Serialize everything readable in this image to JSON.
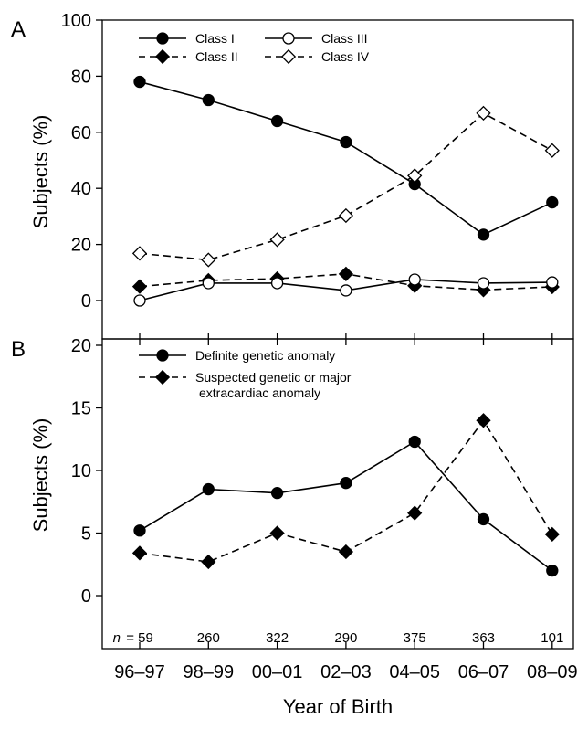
{
  "chart_data": [
    {
      "panel": "A",
      "type": "line",
      "ylabel": "Subjects (%)",
      "ylim": [
        -10,
        100
      ],
      "yticks": [
        0,
        20,
        40,
        60,
        80,
        100
      ],
      "categories": [
        "96–97",
        "98–99",
        "00–01",
        "02–03",
        "04–05",
        "06–07",
        "08–09"
      ],
      "legend_position": "top-left",
      "series": [
        {
          "name": "Class I",
          "marker": "filled-circle",
          "line": "solid",
          "values": [
            78,
            71.5,
            64,
            56.5,
            41.5,
            23.5,
            35
          ]
        },
        {
          "name": "Class II",
          "marker": "filled-diamond",
          "line": "dashed",
          "values": [
            5,
            7.2,
            7.8,
            9.5,
            5.3,
            3.8,
            4.9
          ]
        },
        {
          "name": "Class III",
          "marker": "open-circle",
          "line": "solid",
          "values": [
            0,
            6.2,
            6.2,
            3.6,
            7.5,
            6.2,
            6.5
          ]
        },
        {
          "name": "Class IV",
          "marker": "open-diamond",
          "line": "dashed",
          "values": [
            16.8,
            14.5,
            21.7,
            30.3,
            44.5,
            66.8,
            53.5
          ]
        }
      ]
    },
    {
      "panel": "B",
      "type": "line",
      "ylabel": "Subjects (%)",
      "xlabel": "Year of Birth",
      "ylim": [
        -2.5,
        20
      ],
      "yticks": [
        0,
        5,
        10,
        15,
        20
      ],
      "categories": [
        "96–97",
        "98–99",
        "00–01",
        "02–03",
        "04–05",
        "06–07",
        "08–09"
      ],
      "n_prefix": "n",
      "n_values": [
        "= 59",
        "260",
        "322",
        "290",
        "375",
        "363",
        "101"
      ],
      "legend_position": "top-left",
      "series": [
        {
          "name": "Definite genetic anomaly",
          "marker": "filled-circle",
          "line": "solid",
          "values": [
            5.2,
            8.5,
            8.2,
            9.0,
            12.3,
            6.1,
            2.0
          ]
        },
        {
          "name": "Suspected genetic or major",
          "name_line2": "extracardiac anomaly",
          "marker": "filled-diamond",
          "line": "dashed",
          "values": [
            3.4,
            2.7,
            5.0,
            3.5,
            6.6,
            14.0,
            4.9
          ]
        }
      ]
    }
  ]
}
